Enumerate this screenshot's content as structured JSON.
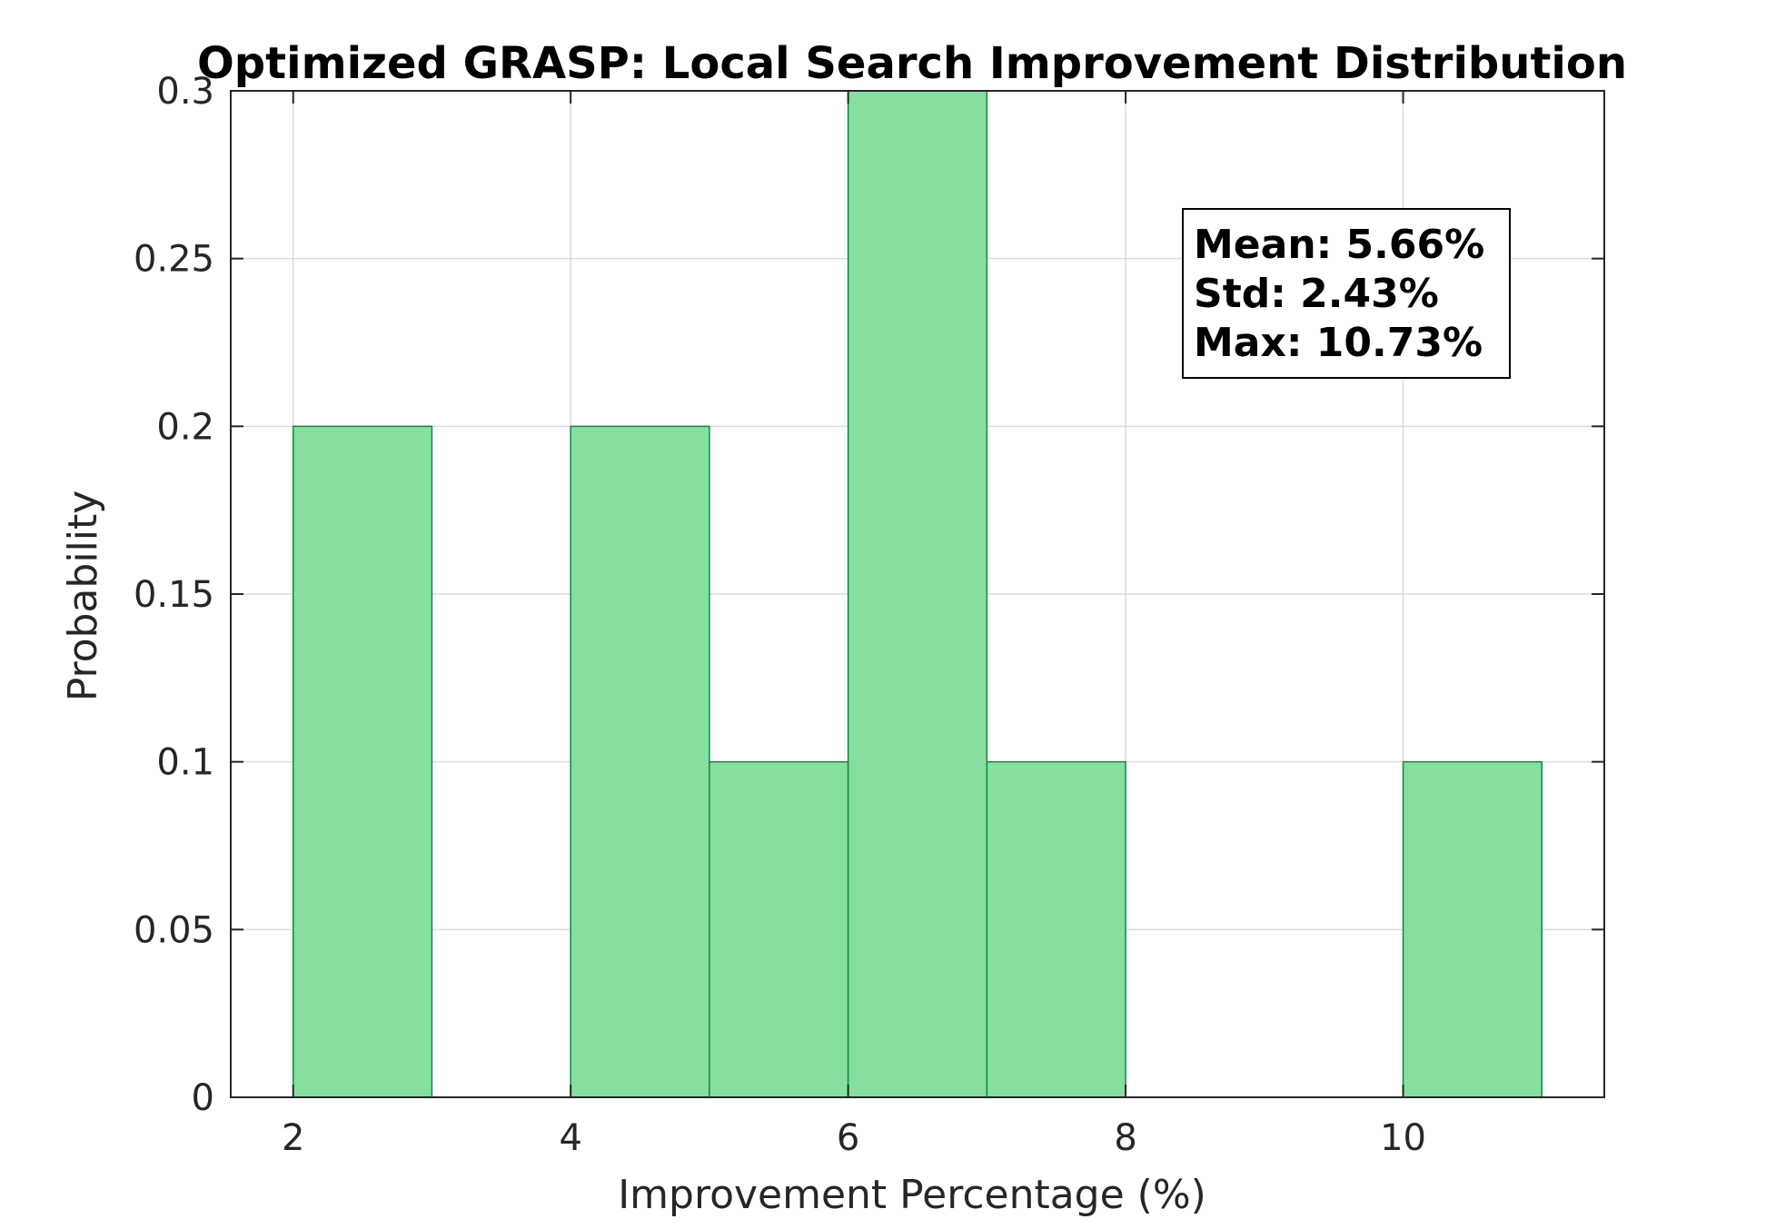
{
  "chart_data": {
    "type": "bar",
    "title": "Optimized GRASP: Local Search Improvement Distribution",
    "xlabel": "Improvement Percentage (%)",
    "ylabel": "Probability",
    "bins": [
      {
        "x0": 2,
        "x1": 3,
        "value": 0.2
      },
      {
        "x0": 4,
        "x1": 5,
        "value": 0.2
      },
      {
        "x0": 5,
        "x1": 6,
        "value": 0.1
      },
      {
        "x0": 6,
        "x1": 7,
        "value": 0.3
      },
      {
        "x0": 7,
        "x1": 8,
        "value": 0.1
      },
      {
        "x0": 10,
        "x1": 11,
        "value": 0.1
      }
    ],
    "xlim": [
      1.55,
      11.45
    ],
    "ylim": [
      0,
      0.3
    ],
    "xticks": [
      2,
      4,
      6,
      8,
      10
    ],
    "xtick_labels": [
      "2",
      "4",
      "6",
      "8",
      "10"
    ],
    "yticks": [
      0,
      0.05,
      0.1,
      0.15,
      0.2,
      0.25,
      0.3
    ],
    "ytick_labels": [
      "0",
      "0.05",
      "0.1",
      "0.15",
      "0.2",
      "0.25",
      "0.3"
    ],
    "grid": true,
    "annotation": {
      "lines": [
        "Mean: 5.66%",
        "Std: 2.43%",
        "Max: 10.73%"
      ],
      "placement": "top-right"
    },
    "colors": {
      "bar_fill": "#86DFA0",
      "bar_edge": "#0F8A3C",
      "grid": "#DCDCDC",
      "axis": "#262626"
    }
  }
}
